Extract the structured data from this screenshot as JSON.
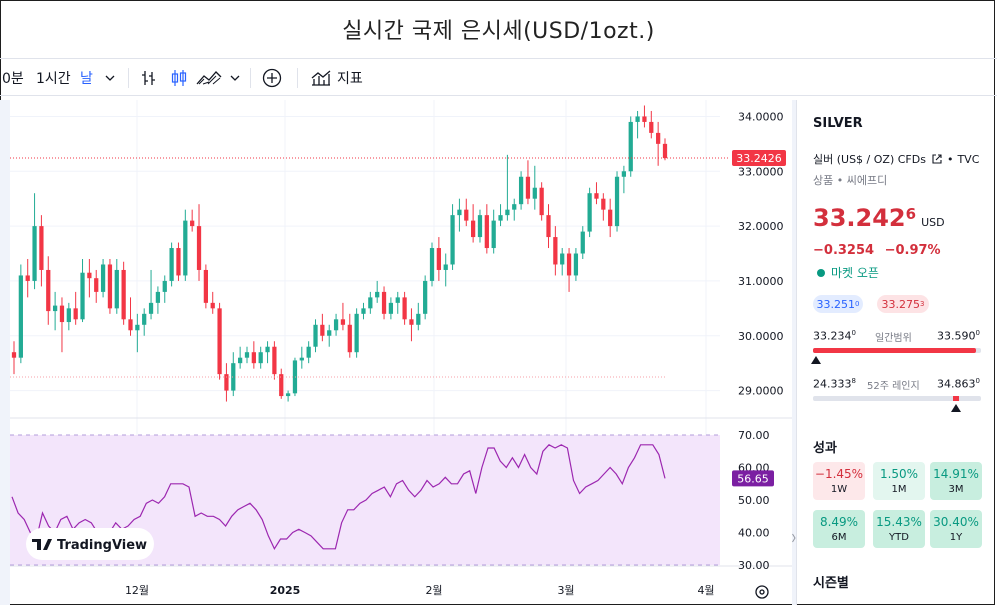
{
  "title": "실시간 국제 은시세(USD/1ozt.)",
  "toolbar": {
    "interval_cut": "0분",
    "interval_hour": "1시간",
    "interval_day": "날",
    "indicators_label": "지표"
  },
  "colors": {
    "up": "#22ab94",
    "down": "#f23645",
    "rsi": "#9c27b0",
    "rsi_band": "#f3e5fb",
    "accent_red": "#d32f3c"
  },
  "chart_data": [
    {
      "type": "candlestick",
      "title": "",
      "x_tick_labels": [
        "12월",
        "2025",
        "2월",
        "3월",
        "4월"
      ],
      "y_tick_labels": [
        "34.0000",
        "33.0000",
        "32.0000",
        "31.0000",
        "30.0000",
        "29.0000"
      ],
      "ylim": [
        28.5,
        34.3
      ],
      "last_price_label": "33.2426",
      "last_price": 33.2426,
      "candles": [
        [
          29.7,
          29.9,
          29.3,
          29.6
        ],
        [
          29.6,
          31.3,
          29.5,
          31.1
        ],
        [
          31.1,
          31.4,
          30.7,
          31.0
        ],
        [
          31.0,
          32.6,
          30.85,
          32.0
        ],
        [
          32.0,
          32.2,
          30.9,
          31.2
        ],
        [
          31.2,
          31.45,
          30.2,
          30.45
        ],
        [
          30.45,
          30.8,
          30.1,
          30.55
        ],
        [
          30.55,
          30.7,
          29.7,
          30.25
        ],
        [
          30.25,
          30.6,
          30.1,
          30.5
        ],
        [
          30.5,
          30.8,
          30.2,
          30.3
        ],
        [
          30.3,
          31.4,
          30.25,
          31.15
        ],
        [
          31.15,
          31.4,
          30.7,
          31.05
        ],
        [
          31.05,
          31.2,
          30.6,
          30.8
        ],
        [
          30.8,
          31.4,
          30.7,
          31.3
        ],
        [
          31.3,
          31.4,
          30.4,
          30.5
        ],
        [
          30.5,
          31.4,
          30.4,
          31.2
        ],
        [
          31.2,
          31.35,
          30.2,
          30.3
        ],
        [
          30.3,
          30.7,
          30.0,
          30.1
        ],
        [
          30.1,
          30.4,
          29.7,
          30.2
        ],
        [
          30.2,
          30.5,
          30.0,
          30.4
        ],
        [
          30.4,
          31.2,
          30.3,
          30.6
        ],
        [
          30.6,
          30.9,
          30.4,
          30.8
        ],
        [
          30.8,
          31.1,
          30.6,
          31.0
        ],
        [
          31.0,
          31.7,
          30.9,
          31.6
        ],
        [
          31.6,
          31.7,
          31.0,
          31.1
        ],
        [
          31.1,
          32.3,
          31.0,
          32.1
        ],
        [
          32.1,
          32.3,
          31.9,
          32.0
        ],
        [
          32.0,
          32.4,
          31.0,
          31.2
        ],
        [
          31.2,
          31.3,
          30.5,
          30.6
        ],
        [
          30.6,
          30.8,
          30.4,
          30.5
        ],
        [
          30.5,
          30.6,
          29.2,
          29.3
        ],
        [
          29.3,
          29.5,
          28.8,
          29.0
        ],
        [
          29.0,
          29.7,
          28.9,
          29.5
        ],
        [
          29.5,
          29.8,
          29.4,
          29.6
        ],
        [
          29.6,
          29.8,
          29.5,
          29.7
        ],
        [
          29.7,
          29.9,
          29.4,
          29.5
        ],
        [
          29.5,
          29.8,
          29.4,
          29.7
        ],
        [
          29.7,
          29.9,
          29.5,
          29.8
        ],
        [
          29.8,
          29.9,
          29.2,
          29.3
        ],
        [
          29.3,
          29.4,
          28.85,
          28.9
        ],
        [
          28.9,
          29.0,
          28.8,
          28.95
        ],
        [
          28.95,
          29.6,
          28.9,
          29.55
        ],
        [
          29.55,
          29.8,
          29.4,
          29.6
        ],
        [
          29.6,
          29.9,
          29.5,
          29.8
        ],
        [
          29.8,
          30.3,
          29.7,
          30.2
        ],
        [
          30.2,
          30.4,
          29.9,
          30.0
        ],
        [
          30.0,
          30.2,
          29.8,
          30.1
        ],
        [
          30.1,
          30.4,
          30.0,
          30.3
        ],
        [
          30.3,
          30.6,
          30.1,
          30.2
        ],
        [
          30.2,
          30.4,
          29.6,
          29.7
        ],
        [
          29.7,
          30.5,
          29.6,
          30.4
        ],
        [
          30.4,
          30.6,
          30.3,
          30.5
        ],
        [
          30.5,
          30.8,
          30.4,
          30.7
        ],
        [
          30.7,
          31.0,
          30.6,
          30.8
        ],
        [
          30.8,
          30.9,
          30.3,
          30.4
        ],
        [
          30.4,
          30.7,
          30.3,
          30.6
        ],
        [
          30.6,
          30.8,
          30.4,
          30.7
        ],
        [
          30.7,
          30.8,
          30.2,
          30.3
        ],
        [
          30.3,
          30.5,
          29.9,
          30.2
        ],
        [
          30.2,
          30.6,
          30.1,
          30.4
        ],
        [
          30.4,
          31.1,
          30.3,
          31.0
        ],
        [
          31.0,
          31.7,
          30.9,
          31.6
        ],
        [
          31.6,
          31.8,
          31.0,
          31.2
        ],
        [
          31.2,
          31.5,
          30.9,
          31.3
        ],
        [
          31.3,
          32.4,
          31.2,
          32.2
        ],
        [
          32.2,
          32.5,
          31.9,
          32.3
        ],
        [
          32.3,
          32.5,
          32.0,
          32.1
        ],
        [
          32.1,
          32.4,
          31.7,
          31.8
        ],
        [
          31.8,
          32.3,
          31.7,
          32.2
        ],
        [
          32.2,
          32.4,
          31.5,
          31.6
        ],
        [
          31.6,
          32.3,
          31.5,
          32.1
        ],
        [
          32.1,
          32.4,
          32.0,
          32.2
        ],
        [
          32.2,
          33.3,
          32.1,
          32.3
        ],
        [
          32.3,
          32.5,
          32.1,
          32.4
        ],
        [
          32.4,
          33.0,
          32.3,
          32.9
        ],
        [
          32.9,
          33.2,
          32.4,
          32.5
        ],
        [
          32.5,
          33.1,
          32.3,
          32.7
        ],
        [
          32.7,
          32.8,
          32.1,
          32.2
        ],
        [
          32.2,
          32.4,
          31.6,
          31.8
        ],
        [
          31.8,
          32.0,
          31.1,
          31.3
        ],
        [
          31.3,
          31.6,
          31.1,
          31.5
        ],
        [
          31.5,
          31.6,
          30.8,
          31.1
        ],
        [
          31.1,
          31.6,
          31.0,
          31.5
        ],
        [
          31.5,
          32.0,
          31.4,
          31.9
        ],
        [
          31.9,
          32.7,
          31.8,
          32.6
        ],
        [
          32.6,
          32.8,
          32.4,
          32.5
        ],
        [
          32.5,
          32.6,
          32.1,
          32.3
        ],
        [
          32.3,
          32.5,
          31.8,
          32.0
        ],
        [
          32.0,
          33.0,
          31.9,
          32.9
        ],
        [
          32.9,
          33.1,
          32.6,
          33.0
        ],
        [
          33.0,
          34.0,
          32.9,
          33.9
        ],
        [
          33.9,
          34.1,
          33.6,
          34.0
        ],
        [
          34.0,
          34.2,
          33.8,
          33.9
        ],
        [
          33.9,
          34.1,
          33.6,
          33.7
        ],
        [
          33.7,
          33.9,
          33.1,
          33.5
        ],
        [
          33.5,
          33.6,
          33.2,
          33.24
        ]
      ]
    },
    {
      "type": "line",
      "title": "",
      "y_tick_labels": [
        "70.00",
        "60.00",
        "50.00",
        "40.00",
        "30.00"
      ],
      "ylim": [
        30,
        70
      ],
      "band": [
        30,
        70
      ],
      "last_value_label": "56.65",
      "values": [
        51,
        46,
        44,
        40,
        38,
        46,
        42,
        40,
        44,
        45,
        41,
        43,
        44,
        43,
        40,
        41,
        40,
        43,
        41,
        42,
        44,
        45,
        49,
        50,
        49,
        51,
        55,
        55,
        55,
        54,
        45,
        46,
        45,
        45,
        44,
        42,
        45,
        47,
        48,
        49,
        47,
        44,
        39,
        35,
        38,
        38,
        40,
        41,
        40,
        39,
        37,
        35,
        35,
        35,
        43,
        47,
        47,
        49,
        50,
        52,
        53,
        54,
        51,
        55,
        56,
        53,
        51,
        53,
        56,
        54,
        55,
        57,
        55,
        55,
        58,
        59,
        52,
        60,
        66,
        66,
        62,
        60,
        63,
        60,
        64,
        60,
        58,
        65,
        67,
        66,
        67,
        66,
        56,
        52,
        54,
        55,
        56,
        58,
        60,
        58,
        55,
        60,
        63,
        67,
        67,
        67,
        64,
        56.65
      ]
    }
  ],
  "watermark": "TradingView",
  "panel": {
    "symbol": "SILVER",
    "description": "실버 (US$ / OZ) CFDs",
    "exchange": "TVC",
    "category": "상품 • 씨에프디",
    "price_main": "33.242",
    "price_sup": "6",
    "currency": "USD",
    "change": "−0.3254",
    "change_pct": "−0.97%",
    "market_status": "마켓 오픈",
    "bid_main": "33.251",
    "bid_sup": "0",
    "ask_main": "33.275",
    "ask_sup": "3",
    "day_low_main": "33.234",
    "day_low_sup": "0",
    "day_range_label": "일간범위",
    "day_high_main": "33.590",
    "day_high_sup": "0",
    "day_range_fill": 0.97,
    "w52_low_main": "24.333",
    "w52_low_sup": "8",
    "w52_range_label": "52주 레인지",
    "w52_high_main": "34.863",
    "w52_high_sup": "0",
    "w52_fill": 0.85,
    "perf_title": "성과",
    "perf": [
      {
        "value": "−1.45%",
        "label": "1W"
      },
      {
        "value": "1.50%",
        "label": "1M"
      },
      {
        "value": "14.91%",
        "label": "3M"
      },
      {
        "value": "8.49%",
        "label": "6M"
      },
      {
        "value": "15.43%",
        "label": "YTD"
      },
      {
        "value": "30.40%",
        "label": "1Y"
      }
    ],
    "seasonal_title": "시즌별"
  }
}
